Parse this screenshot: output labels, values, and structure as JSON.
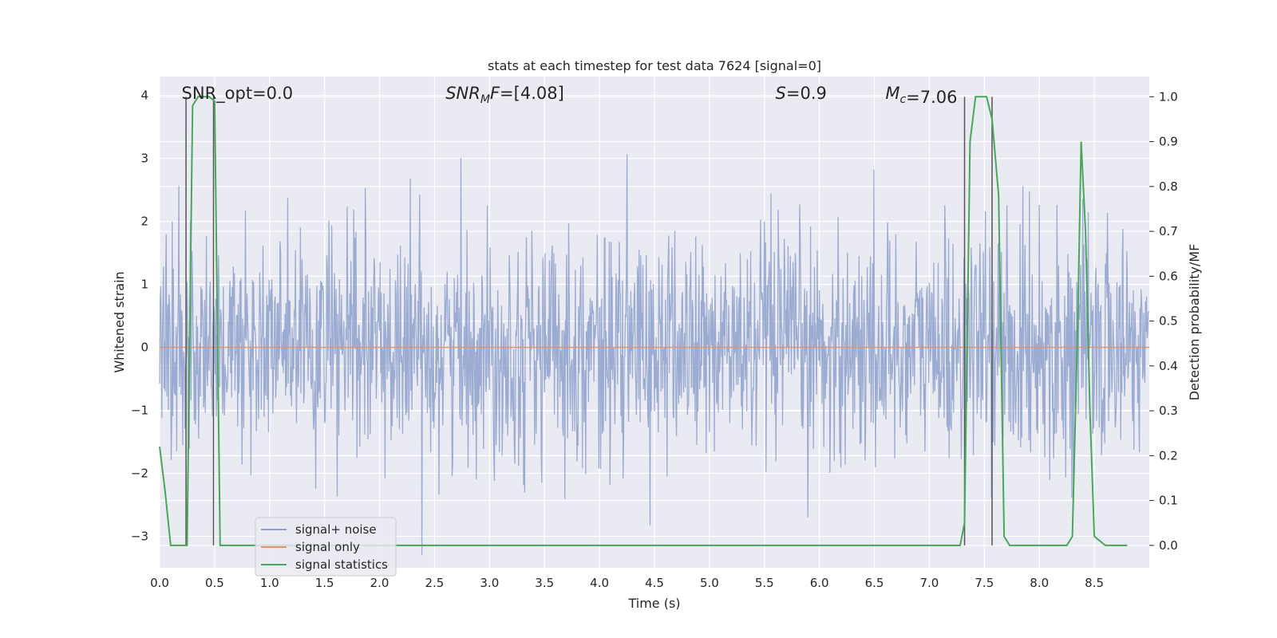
{
  "chart_data": {
    "type": "line",
    "title": "stats at each timestep for test data 7624 [signal=0]",
    "xlabel": "Time (s)",
    "ylabel": "Whitened strain",
    "y2label": "Detection probability/MF",
    "xlim": [
      0.0,
      9.0
    ],
    "ylim": [
      -3.5,
      4.3
    ],
    "y2lim": [
      -0.05,
      1.045
    ],
    "x_ticks": [
      "0.0",
      "0.5",
      "1.0",
      "1.5",
      "2.0",
      "2.5",
      "3.0",
      "3.5",
      "4.0",
      "4.5",
      "5.0",
      "5.5",
      "6.0",
      "6.5",
      "7.0",
      "7.5",
      "8.0",
      "8.5"
    ],
    "y_ticks": [
      "4",
      "3",
      "2",
      "1",
      "0",
      "−1",
      "−2",
      "−3"
    ],
    "y2_ticks": [
      "1.0",
      "0.9",
      "0.8",
      "0.7",
      "0.6",
      "0.5",
      "0.4",
      "0.3",
      "0.2",
      "0.1",
      "0.0"
    ],
    "grid": true,
    "legend_position": "lower-left",
    "annotations": [
      {
        "x": 0.2,
        "html_main": "SNR_opt=0.0",
        "sub": ""
      },
      {
        "x": 2.6,
        "italic_main": "SNR",
        "sub": "M",
        "italic_tail": "F",
        "rest": "=[4.08]"
      },
      {
        "x": 5.6,
        "italic_main": "S",
        "sub": "",
        "italic_tail": "",
        "rest": "=0.9"
      },
      {
        "x": 6.6,
        "italic_main": "M",
        "sub": "c",
        "italic_tail": "",
        "rest": "=7.06"
      }
    ],
    "vertical_markers": [
      0.24,
      0.49,
      7.32,
      7.57
    ],
    "series": [
      {
        "name": "signal+ noise",
        "color": "#8da0cb",
        "kind": "noise",
        "description_values": {
          "mean": 0.0,
          "std": 0.9,
          "approx_min": -3.4,
          "approx_max": 4.0,
          "samples_per_second": 200
        }
      },
      {
        "name": "signal only",
        "color": "#e5926b",
        "kind": "constant",
        "x": [
          0.0,
          9.0
        ],
        "y": [
          0.0,
          0.0
        ]
      },
      {
        "name": "signal statistics",
        "color": "#4aa55d",
        "axis": "right",
        "x": [
          0.0,
          0.05,
          0.1,
          0.15,
          0.2,
          0.25,
          0.3,
          0.35,
          0.4,
          0.45,
          0.5,
          0.55,
          0.6,
          0.65,
          0.7,
          0.75,
          0.8,
          1.0,
          1.5,
          2.0,
          3.0,
          4.0,
          4.55,
          4.6,
          5.0,
          6.0,
          7.0,
          7.28,
          7.32,
          7.37,
          7.42,
          7.47,
          7.52,
          7.57,
          7.63,
          7.68,
          7.73,
          7.78,
          7.9,
          8.0,
          8.1,
          8.25,
          8.3,
          8.35,
          8.38,
          8.42,
          8.46,
          8.5,
          8.55,
          8.6,
          8.7,
          8.8
        ],
        "y": [
          0.22,
          0.12,
          0.0,
          0.0,
          0.0,
          0.0,
          0.98,
          1.0,
          1.0,
          1.0,
          0.99,
          0.0,
          0.0,
          0.0,
          0.0,
          0.0,
          0.0,
          0.0,
          0.0,
          0.0,
          0.0,
          0.0,
          0.0,
          0.0,
          0.0,
          0.0,
          0.0,
          0.0,
          0.05,
          0.9,
          1.0,
          1.0,
          1.0,
          0.95,
          0.78,
          0.02,
          0.0,
          0.0,
          0.0,
          0.0,
          0.0,
          0.0,
          0.02,
          0.5,
          0.9,
          0.7,
          0.3,
          0.02,
          0.01,
          0.0,
          0.0,
          0.0
        ]
      }
    ]
  }
}
